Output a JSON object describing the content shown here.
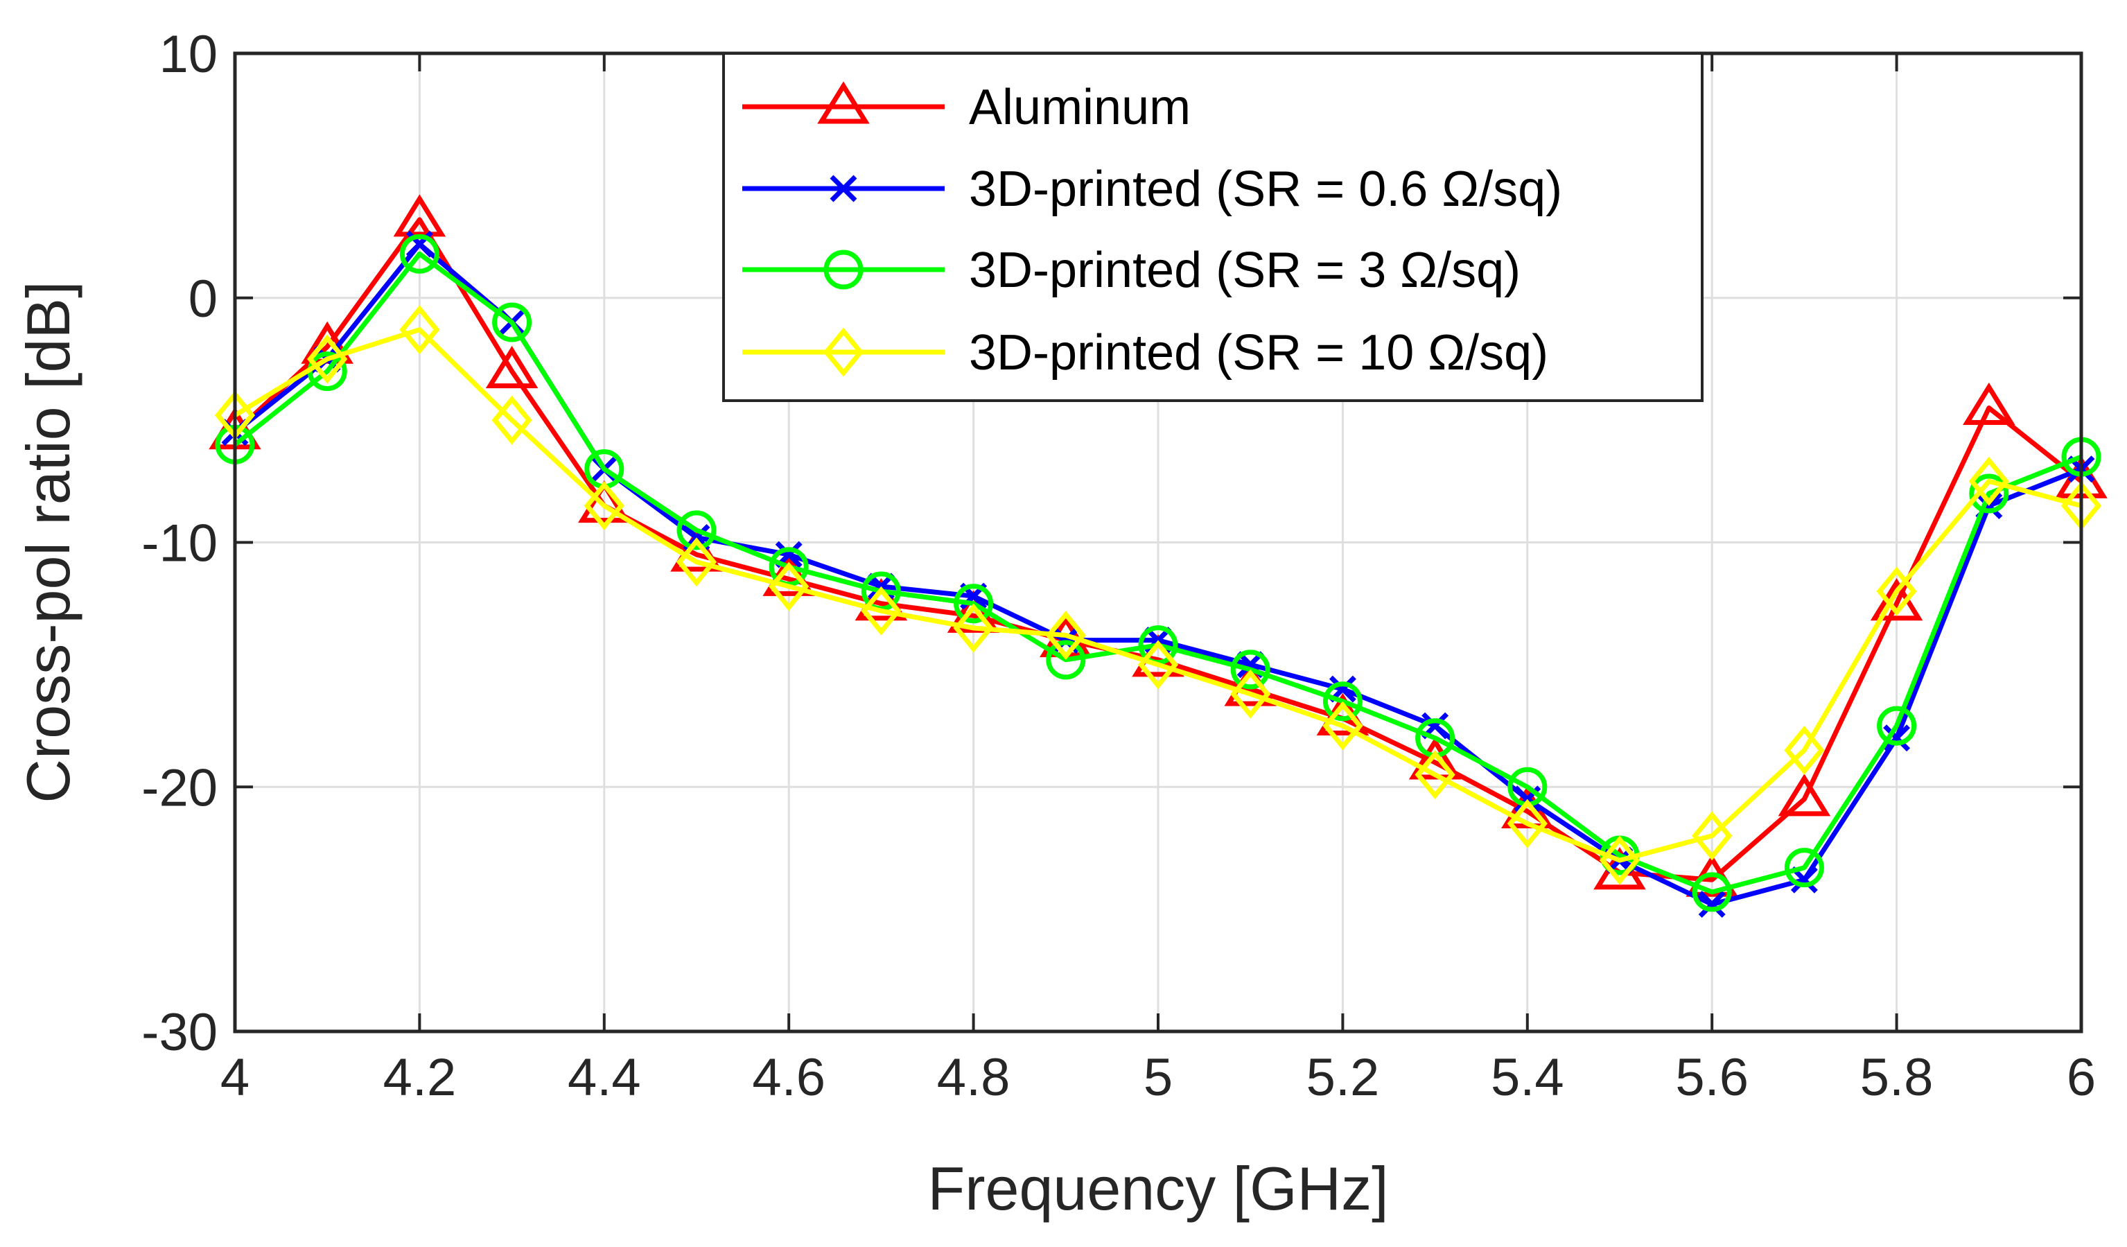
{
  "chart_data": {
    "type": "line",
    "xlabel": "Frequency [GHz]",
    "ylabel": "Cross-pol ratio [dB]",
    "xlim": [
      4,
      6
    ],
    "ylim": [
      -30,
      10
    ],
    "grid": true,
    "legend_position": "top-center",
    "x_ticks": [
      "4",
      "4.2",
      "4.4",
      "4.6",
      "4.8",
      "5",
      "5.2",
      "5.4",
      "5.6",
      "5.8",
      "6"
    ],
    "y_ticks": [
      "10",
      "0",
      "-10",
      "-20",
      "-30"
    ],
    "x": [
      4.0,
      4.1,
      4.2,
      4.3,
      4.4,
      4.5,
      4.6,
      4.7,
      4.8,
      4.9,
      5.0,
      5.1,
      5.2,
      5.3,
      5.4,
      5.5,
      5.6,
      5.7,
      5.8,
      5.9,
      6.0
    ],
    "series": [
      {
        "name": "Aluminum",
        "color": "#ff0000",
        "marker": "triangle",
        "values": [
          -5.5,
          -2.0,
          3.2,
          -3.0,
          -8.5,
          -10.5,
          -11.5,
          -12.5,
          -13.0,
          -14.0,
          -14.8,
          -16.0,
          -17.2,
          -19.0,
          -21.0,
          -23.5,
          -23.8,
          -20.5,
          -12.5,
          -4.5,
          -7.5
        ]
      },
      {
        "name": "3D-printed (SR = 0.6 Ω/sq)",
        "color": "#0000ff",
        "marker": "x",
        "values": [
          -5.5,
          -2.5,
          2.2,
          -1.0,
          -7.0,
          -9.8,
          -10.5,
          -11.8,
          -12.2,
          -14.0,
          -14.0,
          -15.0,
          -16.0,
          -17.5,
          -20.5,
          -23.0,
          -24.8,
          -23.8,
          -18.0,
          -8.5,
          -7.0
        ]
      },
      {
        "name": "3D-printed (SR = 3 Ω/sq)",
        "color": "#00ff00",
        "marker": "circle",
        "values": [
          -6.0,
          -3.0,
          1.8,
          -1.0,
          -7.0,
          -9.5,
          -11.0,
          -12.0,
          -12.5,
          -14.8,
          -14.2,
          -15.2,
          -16.5,
          -18.0,
          -20.0,
          -22.8,
          -24.3,
          -23.3,
          -17.5,
          -8.0,
          -6.5
        ]
      },
      {
        "name": "3D-printed (SR = 10 Ω/sq)",
        "color": "#ffff00",
        "marker": "diamond",
        "values": [
          -4.8,
          -2.5,
          -1.3,
          -5.0,
          -8.5,
          -10.8,
          -11.8,
          -12.8,
          -13.5,
          -13.8,
          -15.0,
          -16.2,
          -17.5,
          -19.5,
          -21.5,
          -23.0,
          -22.0,
          -18.5,
          -12.0,
          -7.5,
          -8.5
        ]
      }
    ]
  }
}
